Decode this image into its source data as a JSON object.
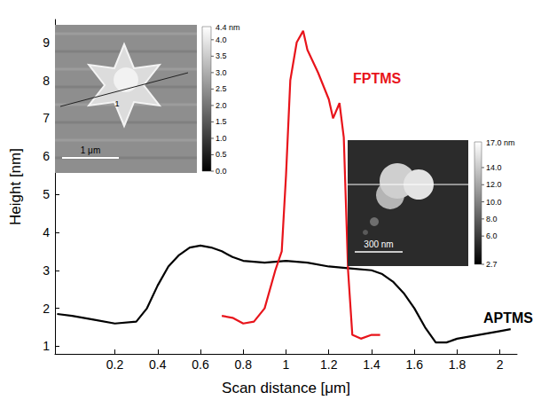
{
  "chart_data": {
    "type": "line",
    "x_label": "Scan distance [μm]",
    "y_label": "Height [nm]",
    "xlim": [
      -0.08,
      2.08
    ],
    "xticks": [
      0.2,
      0.4,
      0.6,
      0.8,
      1,
      1.2,
      1.4,
      1.6,
      1.8,
      2
    ],
    "ylim": [
      0.8,
      9.6
    ],
    "yticks": [
      1,
      2,
      3,
      4,
      5,
      6,
      7,
      8,
      9
    ],
    "grid": false,
    "marker": "none",
    "line_style": "solid",
    "series": [
      {
        "name": "APTMS",
        "color": "#000000",
        "x": [
          -0.07,
          0,
          0.1,
          0.2,
          0.3,
          0.35,
          0.4,
          0.45,
          0.5,
          0.55,
          0.6,
          0.65,
          0.7,
          0.75,
          0.8,
          0.9,
          1.0,
          1.1,
          1.2,
          1.3,
          1.4,
          1.45,
          1.5,
          1.55,
          1.6,
          1.65,
          1.7,
          1.75,
          1.8,
          1.9,
          2.0,
          2.05
        ],
        "values": [
          1.85,
          1.8,
          1.7,
          1.6,
          1.65,
          2.0,
          2.6,
          3.1,
          3.4,
          3.6,
          3.65,
          3.6,
          3.5,
          3.35,
          3.25,
          3.2,
          3.25,
          3.2,
          3.1,
          3.05,
          3.0,
          2.9,
          2.7,
          2.4,
          2.0,
          1.5,
          1.1,
          1.1,
          1.2,
          1.3,
          1.4,
          1.45
        ]
      },
      {
        "name": "FPTMS",
        "color": "#e8141b",
        "x": [
          0.7,
          0.75,
          0.8,
          0.85,
          0.9,
          0.95,
          0.98,
          1.0,
          1.02,
          1.05,
          1.08,
          1.1,
          1.15,
          1.2,
          1.22,
          1.25,
          1.27,
          1.29,
          1.31,
          1.35,
          1.4,
          1.44
        ],
        "values": [
          1.8,
          1.75,
          1.6,
          1.65,
          2.0,
          3.0,
          3.5,
          5.5,
          8.0,
          9.0,
          9.3,
          8.8,
          8.2,
          7.5,
          7.0,
          7.4,
          6.5,
          3.0,
          1.3,
          1.2,
          1.3,
          1.3
        ]
      }
    ],
    "insets": [
      {
        "scale_bar": "1 μm",
        "profile_label": "1",
        "colorbar": {
          "range": [
            0,
            4.4
          ],
          "max_label": "4.4 nm",
          "ticks": [
            {
              "value": 0,
              "label": "0.0"
            },
            0.5,
            {
              "value": 1,
              "label": "1.0"
            },
            1.5,
            {
              "value": 2,
              "label": "2.0"
            },
            2.5,
            {
              "value": 3,
              "label": "3.0"
            },
            3.5,
            {
              "value": 4,
              "label": "4.0"
            }
          ]
        }
      },
      {
        "scale_bar": "300 nm",
        "colorbar": {
          "range": [
            2.7,
            17
          ],
          "max_label": "17.0 nm",
          "ticks": [
            2.7,
            {
              "value": 6,
              "label": "6.0"
            },
            {
              "value": 8,
              "label": "8.0"
            },
            {
              "value": 10,
              "label": "10.0"
            },
            {
              "value": 12,
              "label": "12.0"
            },
            {
              "value": 14,
              "label": "14.0"
            }
          ]
        }
      }
    ]
  }
}
